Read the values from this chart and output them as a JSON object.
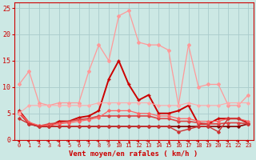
{
  "xlabel": "Vent moyen/en rafales ( km/h )",
  "bg_color": "#cce8e4",
  "grid_color": "#aacccc",
  "xlim": [
    -0.5,
    23.5
  ],
  "ylim": [
    0,
    26
  ],
  "yticks": [
    0,
    5,
    10,
    15,
    20,
    25
  ],
  "xticks": [
    0,
    1,
    2,
    3,
    4,
    5,
    6,
    7,
    8,
    9,
    10,
    11,
    12,
    13,
    14,
    15,
    16,
    17,
    18,
    19,
    20,
    21,
    22,
    23
  ],
  "lines": [
    {
      "x": [
        0,
        1,
        2,
        3,
        4,
        5,
        6,
        7,
        8,
        9,
        10,
        11,
        12,
        13,
        14,
        15,
        16,
        17,
        18,
        19,
        20,
        21,
        22,
        23
      ],
      "y": [
        10.5,
        13,
        7,
        6.5,
        7,
        7,
        7,
        13,
        18,
        15,
        23.5,
        24.5,
        18.5,
        18,
        18,
        17,
        6.5,
        18,
        10,
        10.5,
        10.5,
        6.5,
        6.5,
        8.5
      ],
      "color": "#ff9999",
      "lw": 0.9,
      "marker": "D",
      "ms": 2.0
    },
    {
      "x": [
        0,
        1,
        2,
        3,
        4,
        5,
        6,
        7,
        8,
        9,
        10,
        11,
        12,
        13,
        14,
        15,
        16,
        17,
        18,
        19,
        20,
        21,
        22,
        23
      ],
      "y": [
        5.5,
        3.2,
        2.5,
        2.5,
        3.5,
        3.5,
        4.2,
        4.5,
        5.5,
        11.5,
        15,
        10.5,
        7.5,
        8.5,
        5,
        5,
        5.5,
        6.5,
        3,
        3,
        4,
        4,
        4,
        3.2
      ],
      "color": "#cc0000",
      "lw": 1.4,
      "marker": "+",
      "ms": 3.5
    },
    {
      "x": [
        0,
        1,
        2,
        3,
        4,
        5,
        6,
        7,
        8,
        9,
        10,
        11,
        12,
        13,
        14,
        15,
        16,
        17,
        18,
        19,
        20,
        21,
        22,
        23
      ],
      "y": [
        5.2,
        3.0,
        2.5,
        2.5,
        2.5,
        2.5,
        2.5,
        2.5,
        2.5,
        2.5,
        2.5,
        2.5,
        2.5,
        2.5,
        2.5,
        2.5,
        2.5,
        2.5,
        2.5,
        2.5,
        2.5,
        2.5,
        2.5,
        3.0
      ],
      "color": "#880000",
      "lw": 1.2,
      "marker": "D",
      "ms": 1.8
    },
    {
      "x": [
        0,
        1,
        2,
        3,
        4,
        5,
        6,
        7,
        8,
        9,
        10,
        11,
        12,
        13,
        14,
        15,
        16,
        17,
        18,
        19,
        20,
        21,
        22,
        23
      ],
      "y": [
        5.0,
        3.0,
        2.6,
        3.0,
        3.2,
        3.5,
        3.8,
        4.0,
        4.5,
        4.5,
        4.5,
        4.5,
        4.5,
        4.5,
        4.0,
        4.0,
        3.5,
        3.5,
        3.2,
        3.0,
        3.0,
        3.2,
        3.2,
        3.0
      ],
      "color": "#dd4444",
      "lw": 1.2,
      "marker": "D",
      "ms": 1.8
    },
    {
      "x": [
        0,
        1,
        2,
        3,
        4,
        5,
        6,
        7,
        8,
        9,
        10,
        11,
        12,
        13,
        14,
        15,
        16,
        17,
        18,
        19,
        20,
        21,
        22,
        23
      ],
      "y": [
        5.2,
        3.3,
        2.7,
        2.7,
        3.0,
        3.2,
        3.5,
        3.8,
        4.2,
        5.5,
        5.5,
        5.5,
        5.0,
        5.0,
        4.5,
        4.5,
        4.0,
        4.0,
        3.5,
        3.5,
        3.5,
        4.0,
        4.0,
        3.5
      ],
      "color": "#ff6666",
      "lw": 0.9,
      "marker": "D",
      "ms": 1.8
    },
    {
      "x": [
        0,
        1,
        2,
        3,
        4,
        5,
        6,
        7,
        8,
        9,
        10,
        11,
        12,
        13,
        14,
        15,
        16,
        17,
        18,
        19,
        20,
        21,
        22,
        23
      ],
      "y": [
        5.0,
        6.5,
        6.5,
        6.5,
        6.5,
        6.5,
        6.5,
        6.5,
        7.0,
        7.0,
        7.0,
        7.0,
        7.0,
        7.0,
        6.5,
        6.5,
        6.5,
        7.0,
        6.5,
        6.5,
        6.5,
        7.0,
        7.0,
        7.0
      ],
      "color": "#ffaaaa",
      "lw": 0.8,
      "marker": "D",
      "ms": 1.8
    },
    {
      "x": [
        0,
        1,
        2,
        3,
        4,
        5,
        6,
        7,
        8,
        9,
        10,
        11,
        12,
        13,
        14,
        15,
        16,
        17,
        18,
        19,
        20,
        21,
        22,
        23
      ],
      "y": [
        4.0,
        3.0,
        2.5,
        2.5,
        2.5,
        2.5,
        2.5,
        2.5,
        2.5,
        2.5,
        2.5,
        2.5,
        2.5,
        2.5,
        2.5,
        2.5,
        1.5,
        2.0,
        2.5,
        2.5,
        1.5,
        4.0,
        4.0,
        3.0
      ],
      "color": "#cc3333",
      "lw": 1.0,
      "marker": "D",
      "ms": 1.8
    }
  ],
  "arrows": {
    "angles_deg": [
      200,
      215,
      225,
      225,
      225,
      230,
      230,
      225,
      225,
      235,
      270,
      270,
      225,
      235,
      270,
      270,
      270,
      225,
      225,
      225,
      225,
      225,
      225,
      225
    ],
    "color": "#cc0000",
    "size": 4
  }
}
